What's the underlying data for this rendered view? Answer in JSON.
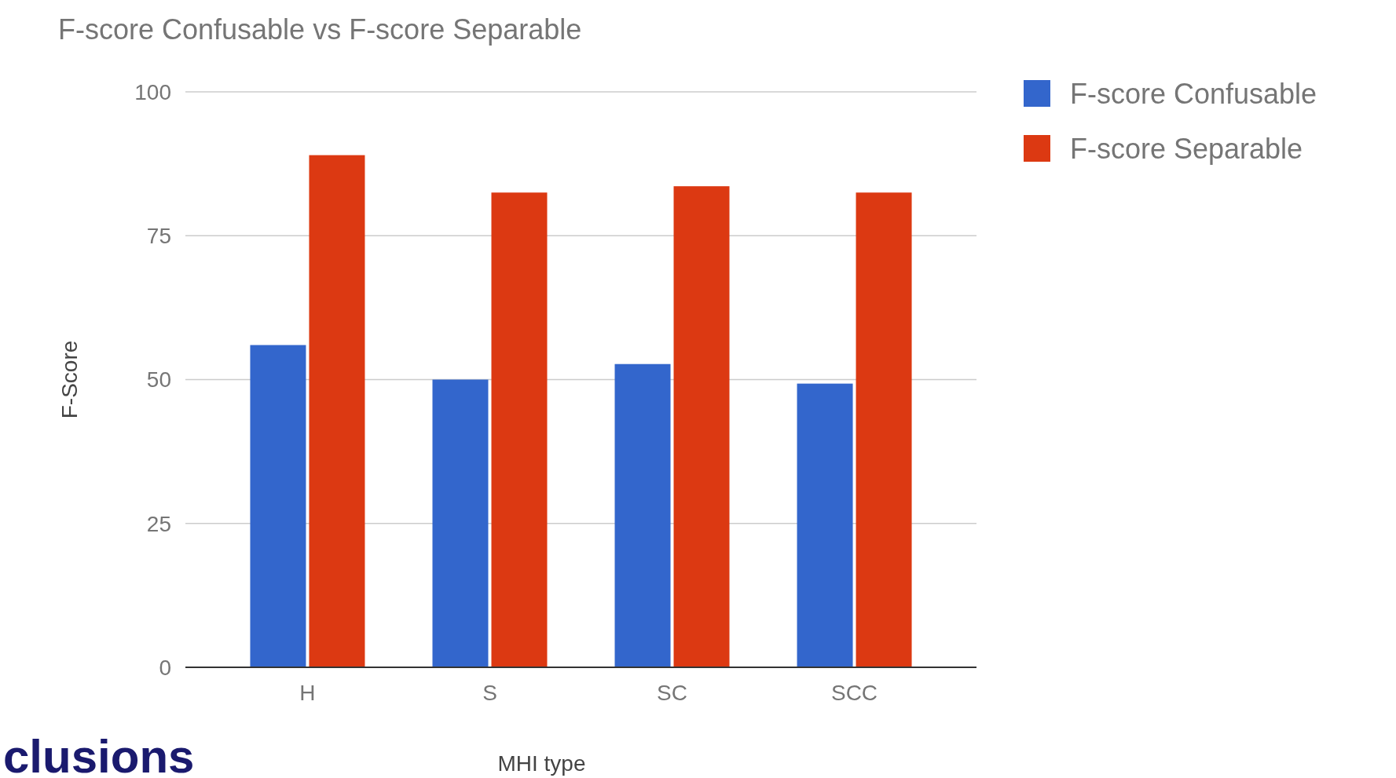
{
  "chart_data": {
    "type": "bar",
    "title": "F-score Confusable vs F-score Separable",
    "xlabel": "MHI type",
    "ylabel": "F-Score",
    "categories": [
      "H",
      "S",
      "SC",
      "SCC"
    ],
    "series": [
      {
        "name": "F-score Confusable",
        "color": "#3366cc",
        "values": [
          56,
          50,
          52.7,
          49.3
        ]
      },
      {
        "name": "F-score Separable",
        "color": "#dc3912",
        "values": [
          89,
          82.5,
          83.6,
          82.5
        ]
      }
    ],
    "ylim": [
      0,
      100
    ],
    "yticks": [
      0,
      25,
      50,
      75,
      100
    ],
    "grid": "y",
    "legend": "top right",
    "annotations": [
      "clusions"
    ]
  }
}
